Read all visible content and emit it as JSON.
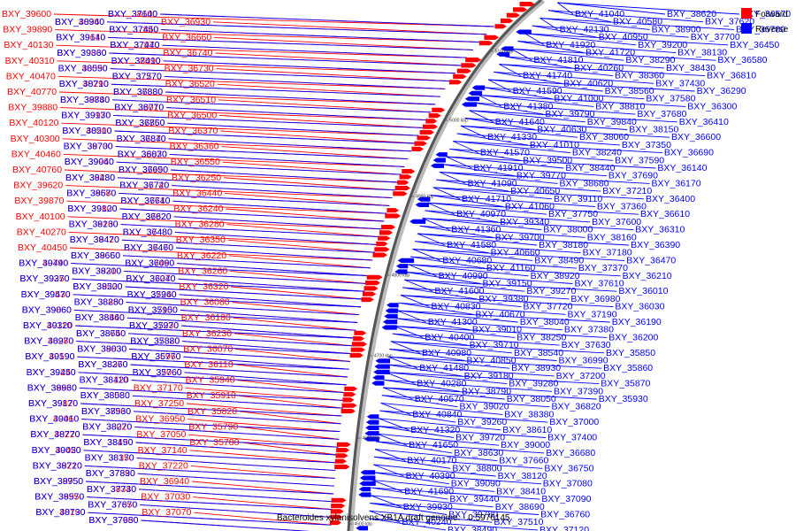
{
  "caption": "Bacteroides xylanisolvens XB1A draft genome. - 0.5976145",
  "legend": [
    {
      "label": "Forward",
      "color": "#ff0000"
    },
    {
      "label": "Reverse",
      "color": "#0000ff"
    }
  ],
  "scale_ticks": [
    "5100 kbp",
    "5000 kbp",
    "4900 kbp",
    "4800 kbp",
    "4700 kbp",
    "4600 kbp",
    "4500 kbp"
  ],
  "left_labels_red": [
    "BXY_39600",
    "BXY_39890",
    "BXY_40130",
    "BXY_40310",
    "BXY_40470",
    "BXY_40770",
    "BXY_39880",
    "BXY_40120",
    "BXY_40300",
    "BXY_40460",
    "BXY_40760",
    "BXY_39620",
    "BXY_39870",
    "BXY_40100",
    "BXY_40270",
    "BXY_40450",
    "BXY_40740",
    "BXY_39250",
    "BXY_39530",
    "BXY_39860",
    "BXY_40110",
    "BXY_40280",
    "BXY_40590",
    "BXY_39240",
    "BXY_39630",
    "BXY_39820",
    "BXY_40060",
    "BXY_40220",
    "BXY_40420",
    "BXY_39210",
    "BXY_39750",
    "BXY_39950",
    "BXY_40190",
    "BXY_40360",
    "BXY_39610",
    "BXY_39830",
    "BXY_40090",
    "BXY_40290",
    "BXY_39740",
    "BXY_39970",
    "BXY_40200",
    "BXY_39730",
    "BXY_39960",
    "BXY_39230",
    "BXY_39580",
    "BXY_39800",
    "BXY_39160",
    "BXY_39420",
    "BXY_39650",
    "BXY_39310",
    "BXY_39220",
    "BXY_38850",
    "BXY_38840",
    "BXY_38740",
    "BXY_38830",
    "BXY_38370",
    "BXY_38110",
    "BXY_38080",
    "BXY_37960",
    "BXY_38020",
    "BXY_38190",
    "BXY_38350",
    "BXY_37890",
    "BXY_38340",
    "BXY_37850",
    "BXY_37980",
    "BXY_38100",
    "BXY_37840",
    "BXY_37970",
    "BXY_38090",
    "BXY_37770",
    "BXY_37880",
    "BXY_38010",
    "BXY_37760",
    "BXY_37870",
    "BXY_38070",
    "BXY_37990",
    "BXY_37740",
    "BXY_37710",
    "BXY_37820",
    "BXY_37480",
    "BXY_37470",
    "BXY_37460",
    "BXY_37270",
    "BXY_37240",
    "BXY_37100",
    "BXY_37230",
    "BXY_37320",
    "BXY_36960",
    "BXY_37060",
    "BXY_37170",
    "BXY_37250",
    "BXY_36950",
    "BXY_37050",
    "BXY_37140",
    "BXY_37220",
    "BXY_36940",
    "BXY_37030",
    "BXY_37070",
    "BXY_36930",
    "BXY_36660",
    "BXY_36740",
    "BXY_36730",
    "BXY_36520",
    "BXY_36510",
    "BXY_36500",
    "BXY_36370",
    "BXY_36360",
    "BXY_36550",
    "BXY_36250",
    "BXY_36440",
    "BXY_36240",
    "BXY_36280",
    "BXY_36350",
    "BXY_36220",
    "BXY_36260",
    "BXY_36320",
    "BXY_36080",
    "BXY_36180",
    "BXY_36230",
    "BXY_36070",
    "BXY_36110",
    "BXY_35940",
    "BXY_35910",
    "BXY_35820",
    "BXY_35790",
    "BXY_35780"
  ],
  "left_labels_blue": [
    "BXY_39490",
    "BXY_39370",
    "BXY_39470",
    "BXY_39060",
    "BXY_39320",
    "BXY_38970",
    "BXY_39190",
    "BXY_39450",
    "BXY_38960",
    "BXY_39170",
    "BXY_39410",
    "BXY_38770",
    "BXY_39050",
    "BXY_38720",
    "BXY_38950",
    "BXY_38570",
    "BXY_38730",
    "BXY_38940",
    "BXY_39140",
    "BXY_39360",
    "BXY_38550",
    "BXY_38710",
    "BXY_38880",
    "BXY_39130",
    "BXY_38510",
    "BXY_38700",
    "BXY_39040",
    "BXY_38480",
    "BXY_38670",
    "BXY_39120",
    "BXY_38230",
    "BXY_38470",
    "BXY_38660",
    "BXY_38200",
    "BXY_38500",
    "BXY_38280",
    "BXY_38460",
    "BXY_38650",
    "BXY_39030",
    "BXY_38260",
    "BXY_38420",
    "BXY_38580",
    "BXY_38530",
    "BXY_38270",
    "BXY_38450",
    "BXY_38170",
    "BXY_37830",
    "BXY_37730",
    "BXY_37670",
    "BXY_37650",
    "BXY_37640",
    "BXY_37450",
    "BXY_37440",
    "BXY_37410",
    "BXY_37570",
    "BXY_36880",
    "BXY_36770",
    "BXY_36850",
    "BXY_36840",
    "BXY_36830",
    "BXY_36650",
    "BXY_36720",
    "BXY_36640",
    "BXY_36620",
    "BXY_36480",
    "BXY_36460",
    "BXY_36090",
    "BXY_36040",
    "BXY_35960",
    "BXY_35950",
    "BXY_35970",
    "BXY_35880",
    "BXY_35770",
    "BXY_35760"
  ],
  "right_labels_blue": [
    "BXY_41040",
    "BXY_42130",
    "BXY_41920",
    "BXY_41810",
    "BXY_41740",
    "BXY_41590",
    "BXY_41380",
    "BXY_41640",
    "BXY_41330",
    "BXY_41570",
    "BXY_41910",
    "BXY_41090",
    "BXY_41710",
    "BXY_40970",
    "BXY_41360",
    "BXY_41580",
    "BXY_40680",
    "BXY_40990",
    "BXY_41600",
    "BXY_40830",
    "BXY_41300",
    "BXY_40400",
    "BXY_40980",
    "BXY_41480",
    "BXY_40280",
    "BXY_40570",
    "BXY_40840",
    "BXY_41320",
    "BXY_41650",
    "BXY_40170",
    "BXY_40390",
    "BXY_41690",
    "BXY_39930",
    "BXY_40240",
    "BXY_40580",
    "BXY_40950",
    "BXY_41720",
    "BXY_40260",
    "BXY_40620",
    "BXY_41000",
    "BXY_39790",
    "BXY_40630",
    "BXY_41010",
    "BXY_39500",
    "BXY_39770",
    "BXY_40650",
    "BXY_41060",
    "BXY_39340",
    "BXY_39700",
    "BXY_40660",
    "BXY_41160",
    "BXY_39150",
    "BXY_39380",
    "BXY_40670",
    "BXY_39010",
    "BXY_39710",
    "BXY_40850",
    "BXY_39180",
    "BXY_38790",
    "BXY_39020",
    "BXY_39260",
    "BXY_39720",
    "BXY_38630",
    "BXY_38800",
    "BXY_39090",
    "BXY_39440",
    "BXY_39780",
    "BXY_38490",
    "BXY_38620",
    "BXY_38900",
    "BXY_39200",
    "BXY_38290",
    "BXY_38360",
    "BXY_38560",
    "BXY_38810",
    "BXY_39840",
    "BXY_38060",
    "BXY_38240",
    "BXY_38440",
    "BXY_38680",
    "BXY_39110",
    "BXY_37750",
    "BXY_38000",
    "BXY_38180",
    "BXY_38490",
    "BXY_38920",
    "BXY_39270",
    "BXY_37720",
    "BXY_38040",
    "BXY_38250",
    "BXY_38540",
    "BXY_38930",
    "BXY_39280",
    "BXY_38050",
    "BXY_38380",
    "BXY_38610",
    "BXY_39000",
    "BXY_37660",
    "BXY_38120",
    "BXY_38410",
    "BXY_38690",
    "BXY_37510",
    "BXY_37620",
    "BXY_37700",
    "BXY_38130",
    "BXY_38430",
    "BXY_37430",
    "BXY_37580",
    "BXY_37680",
    "BXY_38150",
    "BXY_37350",
    "BXY_37590",
    "BXY_37690",
    "BXY_37210",
    "BXY_37360",
    "BXY_37600",
    "BXY_38160",
    "BXY_37180",
    "BXY_37370",
    "BXY_37610",
    "BXY_36980",
    "BXY_37190",
    "BXY_37380",
    "BXY_37630",
    "BXY_36990",
    "BXY_37200",
    "BXY_37390",
    "BXY_36820",
    "BXY_37000",
    "BXY_37400",
    "BXY_36680",
    "BXY_36750",
    "BXY_37080",
    "BXY_37090",
    "BXY_36760",
    "BXY_37120",
    "BXY_36570",
    "BXY_36780",
    "BXY_36450",
    "BXY_36580",
    "BXY_36810",
    "BXY_36290",
    "BXY_36300",
    "BXY_36410",
    "BXY_36600",
    "BXY_36690",
    "BXY_36140",
    "BXY_36170",
    "BXY_36400",
    "BXY_36610",
    "BXY_36310",
    "BXY_36390",
    "BXY_36470",
    "BXY_36210",
    "BXY_36010",
    "BXY_36030",
    "BXY_36190",
    "BXY_36200",
    "BXY_35850",
    "BXY_35860",
    "BXY_35870",
    "BXY_35930"
  ]
}
